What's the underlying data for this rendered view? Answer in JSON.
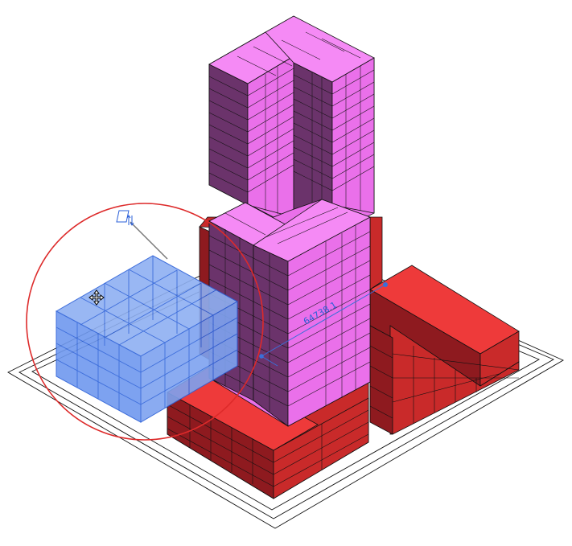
{
  "viewport": {
    "background": "#ffffff",
    "colors": {
      "tower_top": "#f58af5",
      "tower_front": "#ea70ea",
      "tower_side": "#6b336b",
      "podium_top": "#ee3a3a",
      "podium_front": "#c92a2a",
      "podium_side": "#8e1a1f",
      "selection_fill": "#6f99ef",
      "selection_stroke": "#2a5fd8",
      "marquee_circle": "#dd2a2a",
      "dimension": "#3a6fd8",
      "edge": "#111111"
    },
    "icons": {
      "move_cursor": "move-cursor-icon",
      "rotate_handle": "rotate-handle-icon"
    },
    "dimension_label": "64738.1"
  }
}
